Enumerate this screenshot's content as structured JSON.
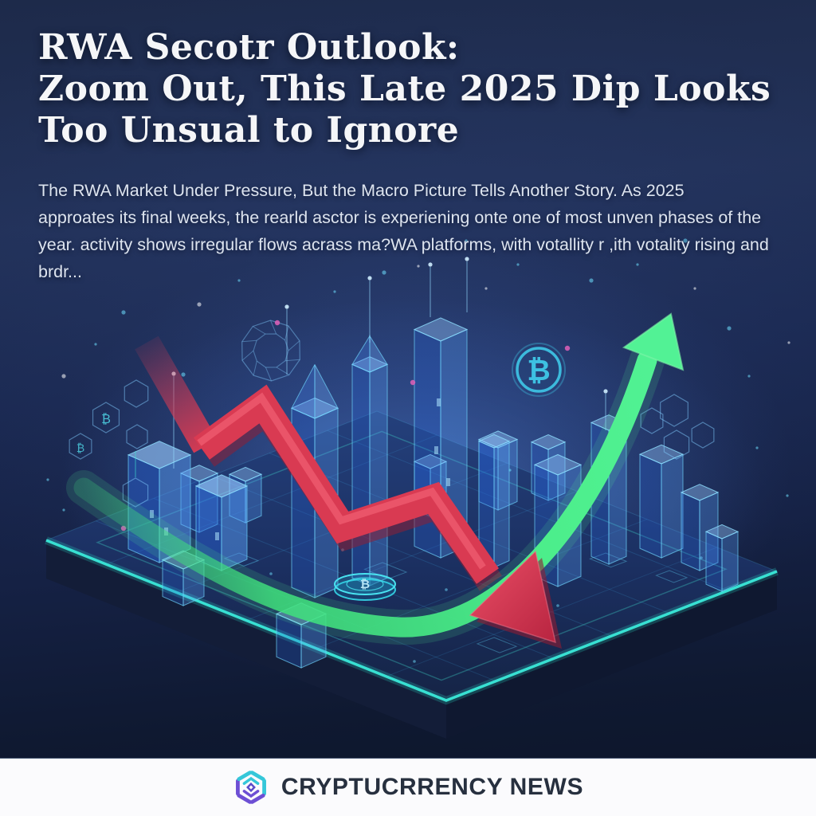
{
  "headline": {
    "line1": "RWA Secotr Outlook:",
    "line2": "Zoom Out, This Late 2025 Dip Looks",
    "line3": "Too Unsual to Ignore"
  },
  "body": {
    "lines": [
      "The RWA Market Under Pressure, But the Macro Picture Tells Another Story. As 2025",
      "approates its final weeks,   the rearld asctor is experiening onte one of most unven phases of the",
      "year.  activity shows irregular flows acrass ma?WA platforms, with votallity r ,ith votality rising and",
      "brdr..."
    ]
  },
  "illustration": {
    "bitcoin_symbol": "₿",
    "coin_symbol": "₿",
    "hex_badge_symbols": [
      "₿",
      "₿"
    ]
  },
  "footer": {
    "brand": "CRYPTUCRRENCY NEWS",
    "logo_icon": "hexagon-cube-logo"
  },
  "colors": {
    "background_navy": "#1b2847",
    "headline_text": "#f5f6f8",
    "body_text": "#dde4ef",
    "downtrend_red": "#d93a52",
    "uptrend_green": "#4be886",
    "city_blue": "#4f9cf0",
    "neon_teal": "#2fe3cf",
    "bitcoin_teal": "#3fc8e8",
    "logo_teal": "#35c7d9",
    "logo_purple": "#6d4fd4",
    "footer_background": "#fbfbfd",
    "footer_text": "#27303f"
  }
}
